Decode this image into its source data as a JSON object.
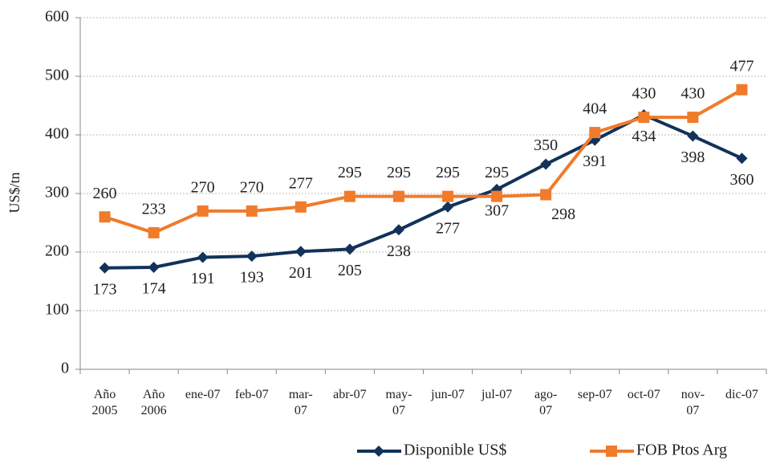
{
  "chart_data": {
    "type": "line",
    "y_label": "US$/tn",
    "categories": [
      "Año 2005",
      "Año 2006",
      "ene-07",
      "feb-07",
      "mar-07",
      "abr-07",
      "may-07",
      "jun-07",
      "jul-07",
      "ago-07",
      "sep-07",
      "oct-07",
      "nov-07",
      "dic-07"
    ],
    "series": [
      {
        "name": "Disponible US$",
        "color": "#12325a",
        "marker": "diamond",
        "values": [
          173,
          174,
          191,
          193,
          201,
          205,
          238,
          277,
          307,
          350,
          391,
          434,
          398,
          360
        ]
      },
      {
        "name": "FOB Ptos Arg",
        "color": "#f07b2b",
        "marker": "square",
        "values": [
          260,
          233,
          270,
          270,
          277,
          295,
          295,
          295,
          295,
          298,
          404,
          430,
          430,
          477
        ]
      }
    ],
    "ylim": [
      0,
      600
    ],
    "yticks": [
      0,
      100,
      200,
      300,
      400,
      500,
      600
    ],
    "grid": true,
    "legend": "bottom"
  }
}
